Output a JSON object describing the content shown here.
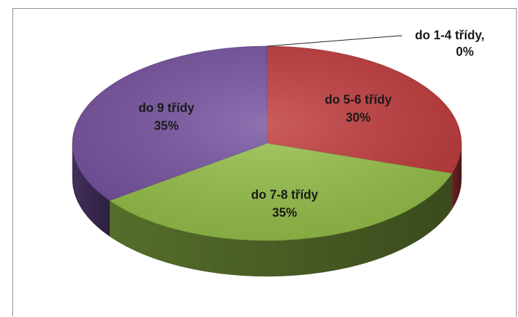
{
  "chart_data": {
    "type": "pie",
    "title": "",
    "legend": "none",
    "slices": [
      {
        "label": "do 1-4 třídy",
        "value": 0,
        "percent_label": "0%",
        "color": "#3f6db0"
      },
      {
        "label": "do 5-6 třídy",
        "value": 30,
        "percent_label": "30%",
        "color": "#c0393b"
      },
      {
        "label": "do 7-8 třídy",
        "value": 35,
        "percent_label": "35%",
        "color": "#96c049"
      },
      {
        "label": "do 9 třídy",
        "value": 35,
        "percent_label": "35%",
        "color": "#7552a0"
      }
    ]
  }
}
